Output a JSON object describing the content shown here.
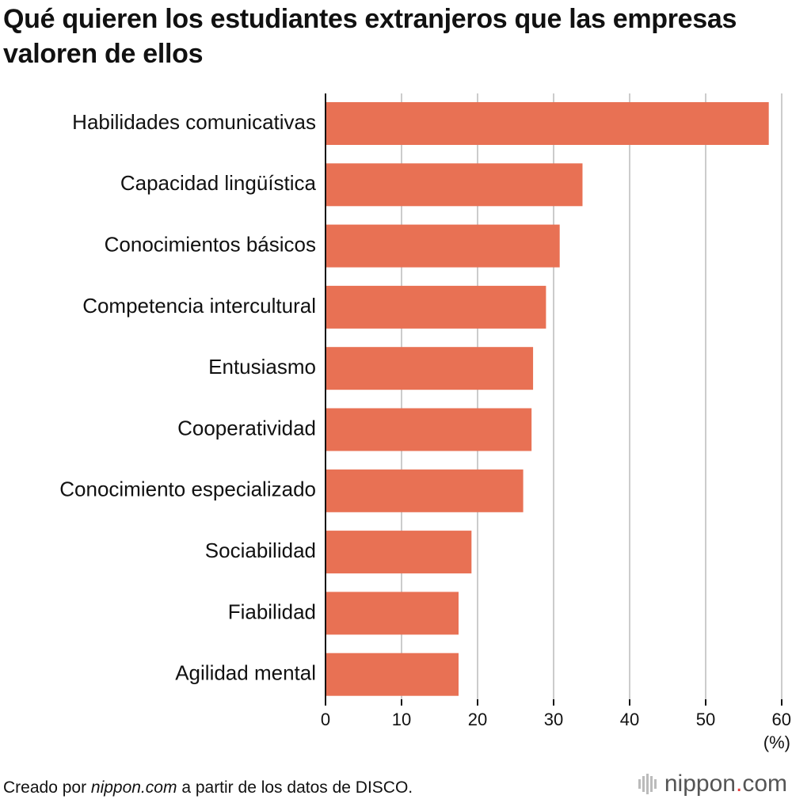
{
  "title": "Qué quieren los estudiantes extranjeros que las empresas valoren de ellos",
  "footer": {
    "prefix": "Creado por ",
    "site": "nippon.com",
    "suffix": " a partir de los datos de DISCO."
  },
  "brand": {
    "name": "nippon",
    "dot": ".",
    "tld": "com"
  },
  "colors": {
    "bar": "#e87154",
    "grid": "#cccccc",
    "axis": "#111111",
    "brand_dot": "#e63a3a"
  },
  "chart_data": {
    "type": "bar",
    "orientation": "horizontal",
    "title": "Qué quieren los estudiantes extranjeros que las empresas valoren de ellos",
    "categories": [
      "Habilidades comunicativas",
      "Capacidad lingüística",
      "Conocimientos básicos",
      "Competencia intercultural",
      "Entusiasmo",
      "Cooperatividad",
      "Conocimiento especializado",
      "Sociabilidad",
      "Fiabilidad",
      "Agilidad mental"
    ],
    "values": [
      58.3,
      33.8,
      30.8,
      29.0,
      27.3,
      27.1,
      26.0,
      19.2,
      17.5,
      17.5
    ],
    "xlim": [
      0,
      60
    ],
    "xticks": [
      "0",
      "10",
      "20",
      "30",
      "40",
      "50",
      "60"
    ],
    "xlabel": "(%)",
    "ylabel": "",
    "grid": true
  }
}
